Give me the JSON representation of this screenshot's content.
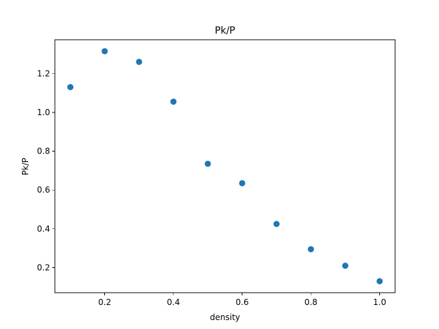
{
  "chart_data": {
    "type": "scatter",
    "title": "Pk/P",
    "xlabel": "density",
    "ylabel": "Pk/P",
    "xlim": [
      0.055,
      1.045
    ],
    "ylim": [
      0.071,
      1.374
    ],
    "x_ticks": [
      0.2,
      0.4,
      0.6,
      0.8,
      1.0
    ],
    "x_tick_labels": [
      "0.2",
      "0.4",
      "0.6",
      "0.8",
      "1.0"
    ],
    "y_ticks": [
      0.2,
      0.4,
      0.6,
      0.8,
      1.0,
      1.2
    ],
    "y_tick_labels": [
      "0.2",
      "0.4",
      "0.6",
      "0.8",
      "1.0",
      "1.2"
    ],
    "grid": false,
    "series": [
      {
        "color": "#1f77b4",
        "x": [
          0.1,
          0.2,
          0.3,
          0.4,
          0.5,
          0.6,
          0.7,
          0.8,
          0.9,
          1.0
        ],
        "y": [
          1.13,
          1.315,
          1.26,
          1.055,
          0.735,
          0.635,
          0.425,
          0.295,
          0.21,
          0.13
        ]
      }
    ]
  }
}
